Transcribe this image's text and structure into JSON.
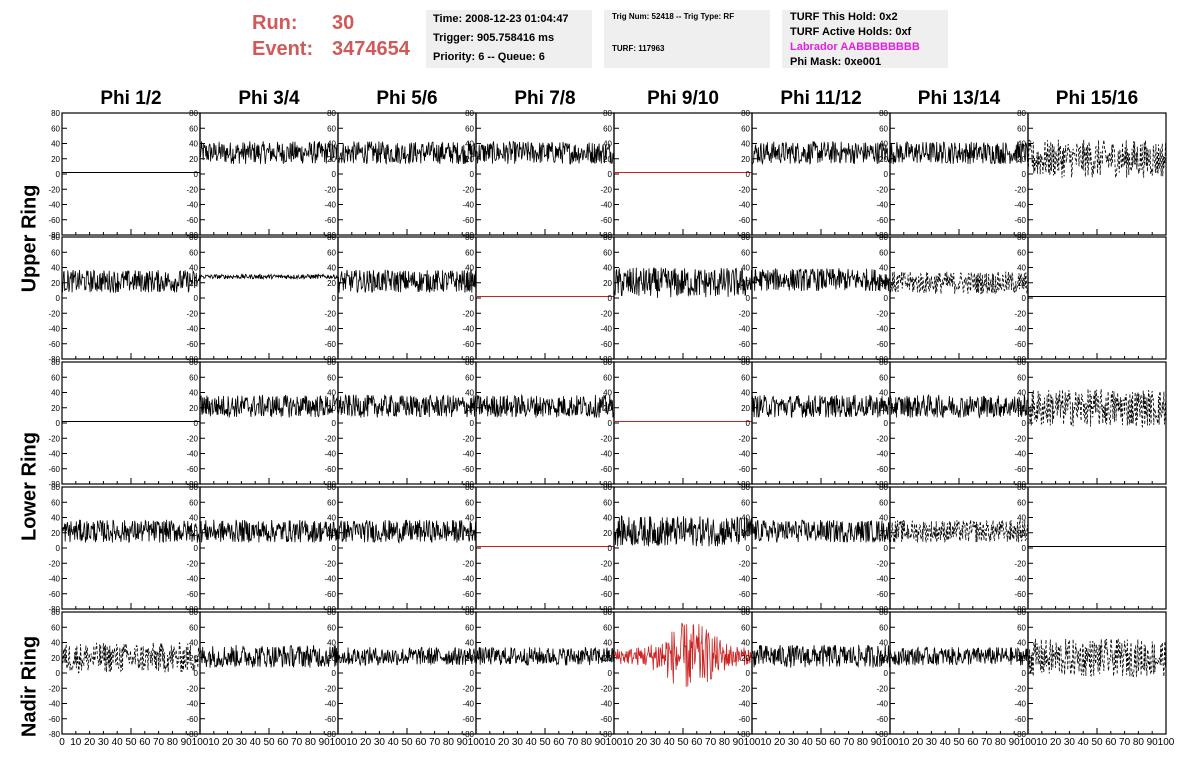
{
  "run": {
    "label": "Run:",
    "value": "30"
  },
  "event": {
    "label": "Event:",
    "value": "3474654"
  },
  "time_box": {
    "time": "Time: 2008-12-23 01:04:47",
    "trigger": "Trigger: 905.758416 ms",
    "priority": "Priority: 6 -- Queue: 6"
  },
  "trig_box": {
    "trig": "Trig Num: 52418 -- Trig Type: RF",
    "turf": "TURF: 117963"
  },
  "turf_box": {
    "this_hold": "TURF This Hold: 0x2",
    "active_holds": "TURF Active Holds: 0xf",
    "labrador": "Labrador AABBBBBBBB",
    "phi_mask": "Phi Mask: 0xe001"
  },
  "columns": [
    "Phi 1/2",
    "Phi 3/4",
    "Phi 5/6",
    "Phi 7/8",
    "Phi 9/10",
    "Phi 11/12",
    "Phi 13/14",
    "Phi 15/16"
  ],
  "ring_labels": [
    "Upper Ring",
    "Lower Ring",
    "Nadir Ring"
  ],
  "y_ticks": [
    "80",
    "60",
    "40",
    "20",
    "0",
    "-20",
    "-40",
    "-60",
    "-80"
  ],
  "x_ticks_first": [
    "0",
    "10",
    "20",
    "30",
    "40",
    "50",
    "60",
    "70",
    "80",
    "90",
    "100"
  ],
  "x_ticks_inner": [
    "10",
    "20",
    "30",
    "40",
    "50",
    "60",
    "70",
    "80",
    "90",
    "100"
  ],
  "colors": {
    "run_text": "#d05a5a",
    "red_trace": "#cc2222",
    "black_trace": "#000000",
    "magenta": "#e020e0",
    "box_bg": "#efefef"
  },
  "chart_data": {
    "type": "line",
    "description_rows": 5,
    "description_cols": 8,
    "xlim": [
      0,
      100
    ],
    "ylim": [
      -80,
      80
    ],
    "panels": [
      [
        "flat",
        "noise",
        "noise",
        "noise",
        "flat-red",
        "noise",
        "noise",
        "dashed"
      ],
      [
        "noise",
        "tiny",
        "noise",
        "flat-red",
        "noise",
        "noise",
        "dashed",
        "flat"
      ],
      [
        "flat",
        "noise",
        "noise",
        "noise",
        "flat-red",
        "noise",
        "noise",
        "dashed"
      ],
      [
        "noise",
        "noise",
        "noise",
        "flat-red",
        "noise",
        "noise",
        "dashed",
        "flat"
      ],
      [
        "dashed",
        "noise",
        "noise",
        "noise",
        "red-big",
        "noise",
        "noise",
        "dashed"
      ]
    ],
    "baseline": [
      [
        2,
        28,
        28,
        28,
        2,
        28,
        28,
        20
      ],
      [
        22,
        28,
        22,
        2,
        20,
        24,
        20,
        2
      ],
      [
        2,
        22,
        22,
        22,
        2,
        22,
        22,
        20
      ],
      [
        22,
        22,
        22,
        2,
        22,
        22,
        22,
        2
      ],
      [
        20,
        22,
        22,
        22,
        22,
        22,
        22,
        20
      ]
    ],
    "amplitude": [
      [
        0,
        15,
        15,
        15,
        0,
        15,
        15,
        25
      ],
      [
        15,
        3,
        15,
        0,
        20,
        15,
        15,
        0
      ],
      [
        0,
        15,
        15,
        15,
        0,
        15,
        15,
        25
      ],
      [
        15,
        15,
        15,
        0,
        20,
        15,
        15,
        0
      ],
      [
        20,
        15,
        12,
        12,
        35,
        15,
        12,
        25
      ]
    ]
  }
}
